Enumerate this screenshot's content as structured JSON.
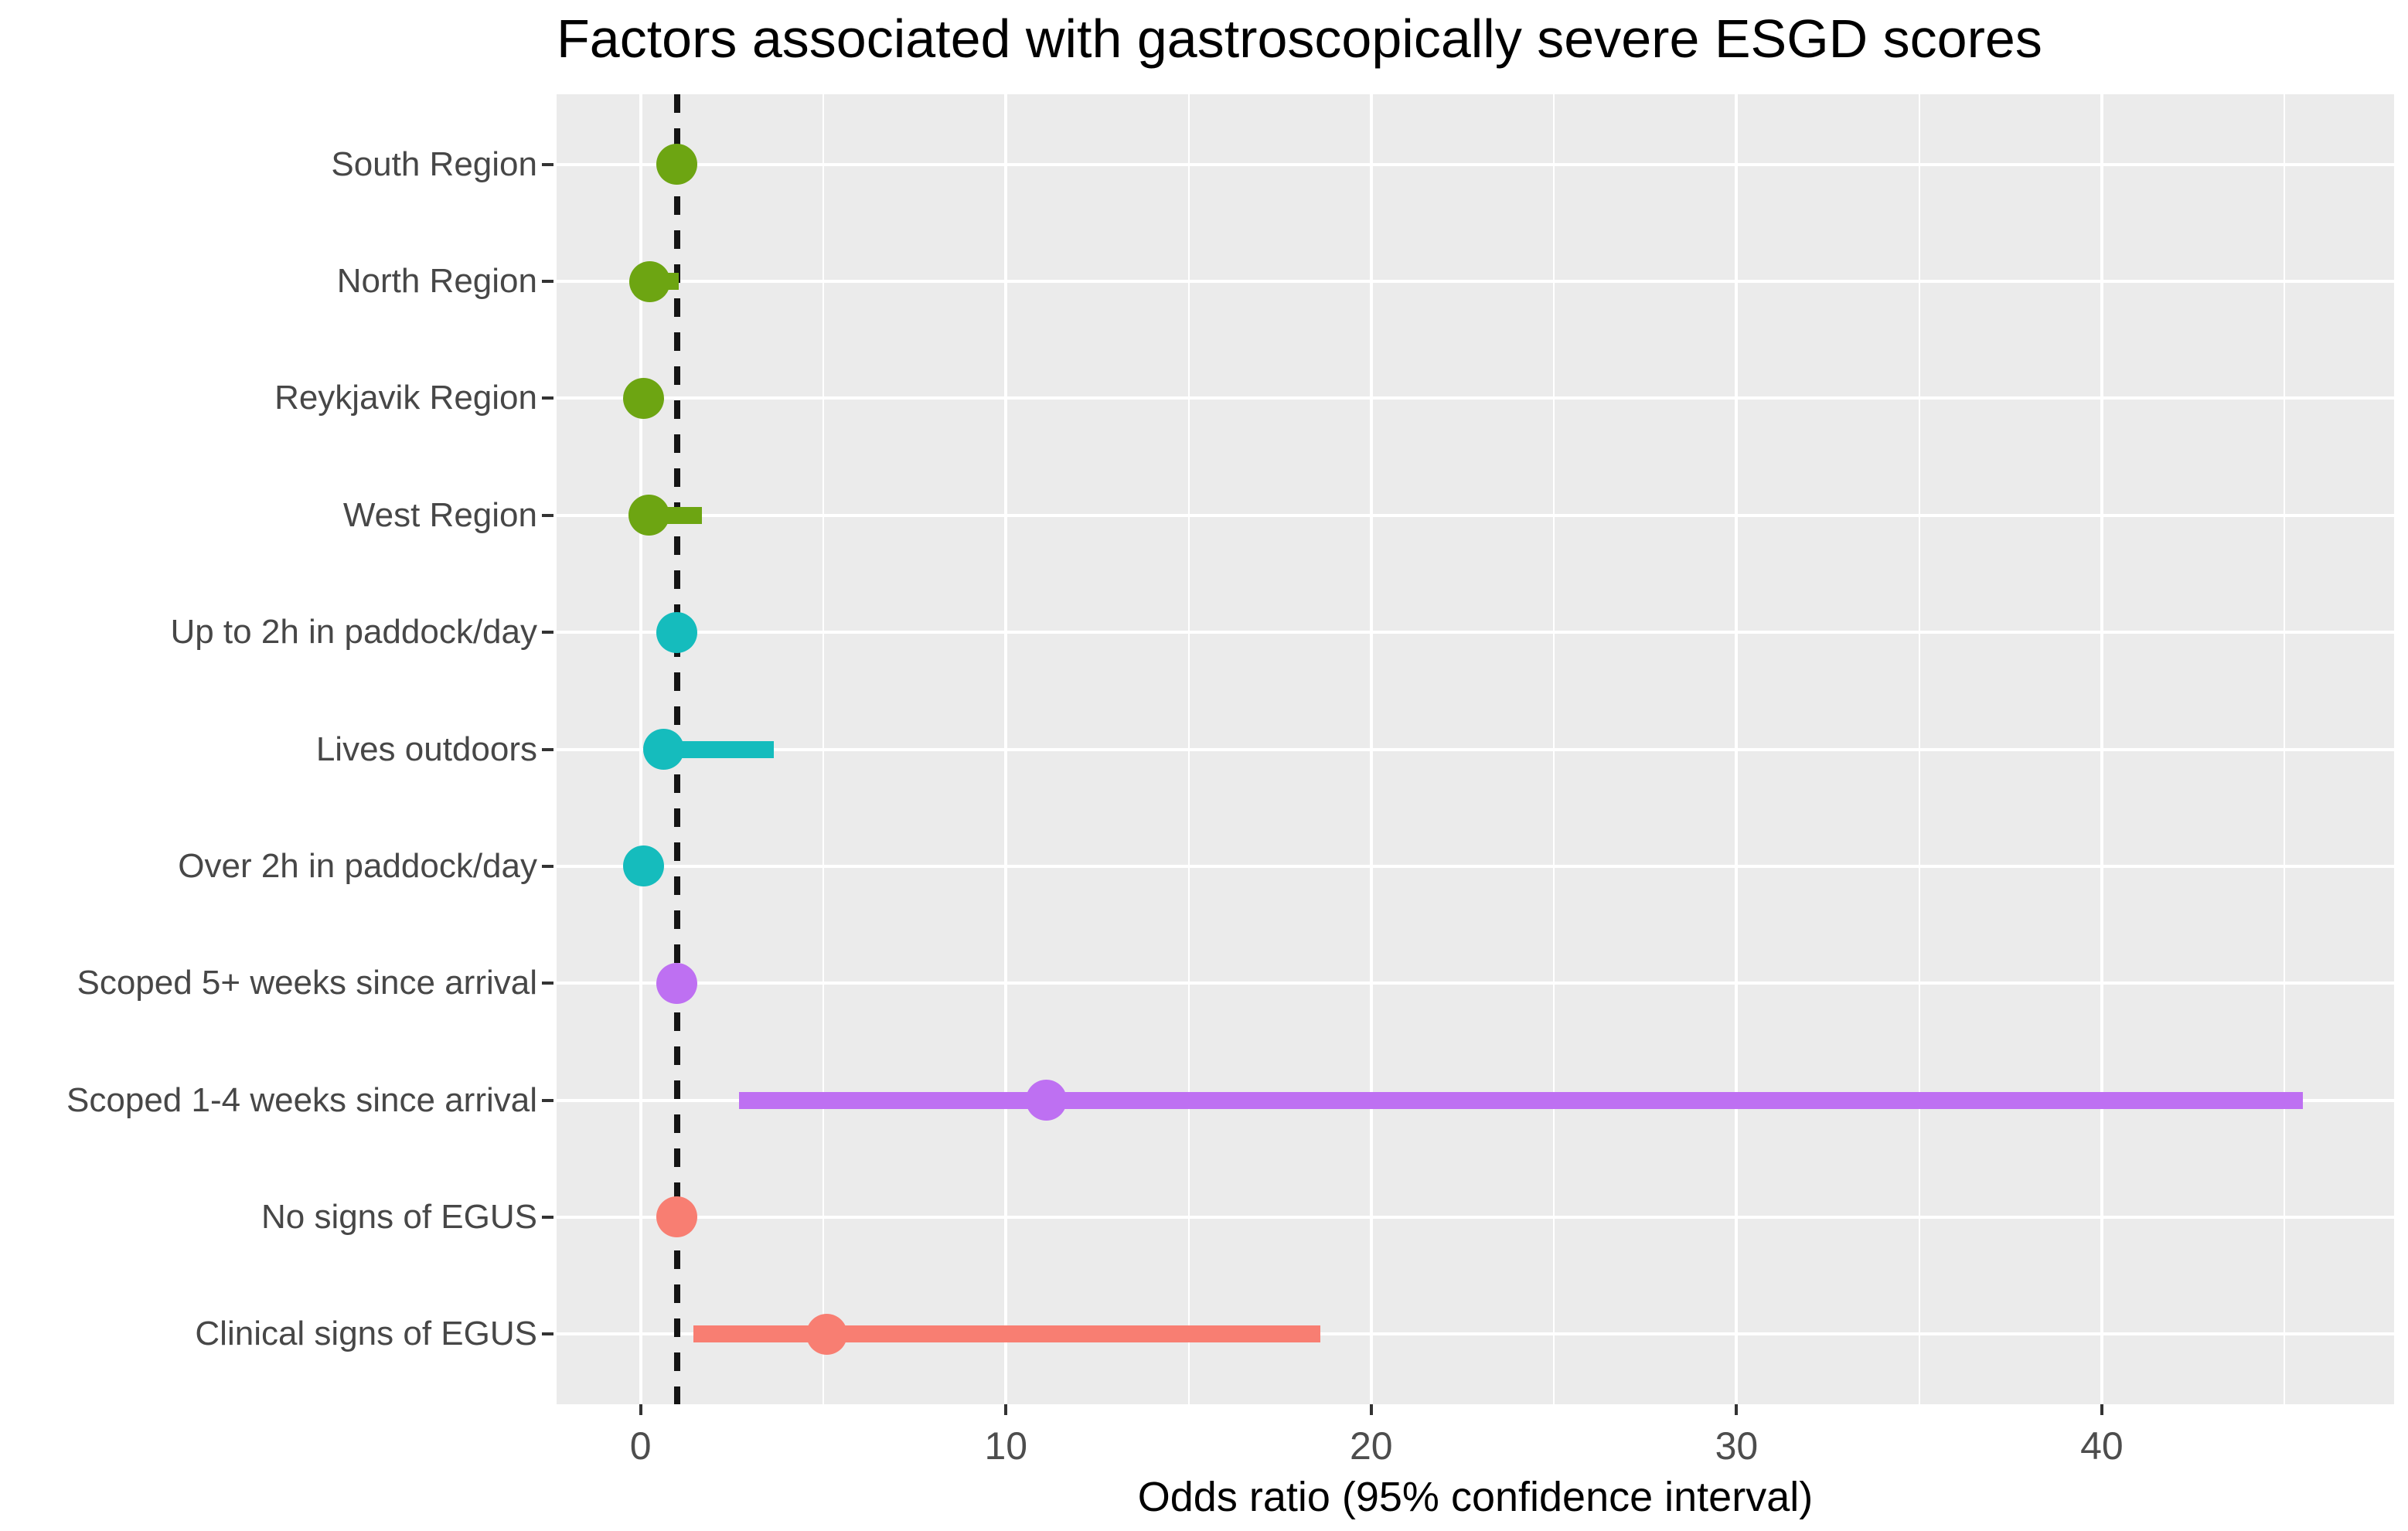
{
  "title": "Factors associated with gastroscopically severe ESGD scores",
  "x_axis_title": "Odds ratio (95% confidence interval)",
  "chart_data": {
    "type": "scatter",
    "subtype": "forest-plot-dot-with-ci",
    "title": "Factors associated with gastroscopically severe ESGD scores",
    "xlabel": "Odds ratio (95% confidence interval)",
    "ylabel": "",
    "xlim": [
      -2.3,
      48.0
    ],
    "x_ticks": [
      0,
      10,
      20,
      30,
      40
    ],
    "x_minor_gridlines": [
      5,
      15,
      25,
      35,
      45
    ],
    "reference_line_x": 1,
    "grid": "major-and-minor-vertical, major-horizontal-per-category",
    "legend": "none",
    "panel_background": "#EBEBEB",
    "gridline_color": "#ffffff",
    "reference_line_color": "#141414",
    "tick_label_color": "#4D4D4D",
    "categories": [
      "South Region",
      "North Region",
      "Reykjavik Region",
      "West Region",
      "Up to 2h in paddock/day",
      "Lives outdoors",
      "Over 2h in paddock/day",
      "Scoped 5+ weeks since arrival",
      "Scoped 1-4 weeks since arrival",
      "No signs of EGUS",
      "Clinical signs of EGUS"
    ],
    "rows": [
      {
        "label": "South Region",
        "or": 1.0,
        "ci_low": 1.0,
        "ci_high": 1.0,
        "color": "#6DA512"
      },
      {
        "label": "North Region",
        "or": 0.25,
        "ci_low": 0.25,
        "ci_high": 1.05,
        "color": "#6DA512"
      },
      {
        "label": "Reykjavik Region",
        "or": 0.08,
        "ci_low": 0.08,
        "ci_high": 0.08,
        "color": "#6DA512"
      },
      {
        "label": "West Region",
        "or": 0.23,
        "ci_low": 0.23,
        "ci_high": 1.67,
        "color": "#6DA512"
      },
      {
        "label": "Up to 2h in paddock/day",
        "or": 1.0,
        "ci_low": 1.0,
        "ci_high": 1.0,
        "color": "#15BCBD"
      },
      {
        "label": "Lives outdoors",
        "or": 0.63,
        "ci_low": 0.63,
        "ci_high": 3.64,
        "color": "#15BCBD"
      },
      {
        "label": "Over 2h in paddock/day",
        "or": 0.08,
        "ci_low": 0.08,
        "ci_high": 0.08,
        "color": "#15BCBD"
      },
      {
        "label": "Scoped 5+ weeks since arrival",
        "or": 1.0,
        "ci_low": 1.0,
        "ci_high": 1.0,
        "color": "#BE70F2"
      },
      {
        "label": "Scoped 1-4 weeks since arrival",
        "or": 11.1,
        "ci_low": 2.7,
        "ci_high": 45.5,
        "color": "#BE70F2"
      },
      {
        "label": "No signs of EGUS",
        "or": 1.0,
        "ci_low": 1.0,
        "ci_high": 1.0,
        "color": "#F87E72"
      },
      {
        "label": "Clinical signs of EGUS",
        "or": 5.1,
        "ci_low": 1.45,
        "ci_high": 18.6,
        "color": "#F87E72"
      }
    ]
  }
}
